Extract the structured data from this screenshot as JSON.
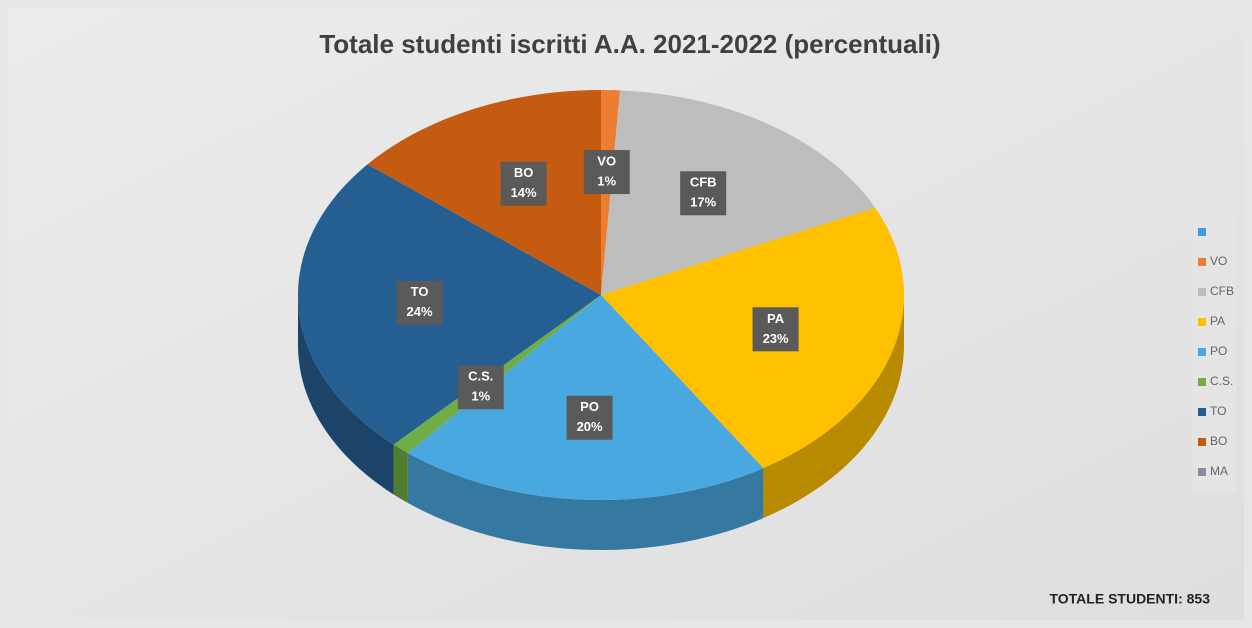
{
  "chart_data": {
    "type": "pie3d",
    "title": "Totale studenti iscritti A.A. 2021-2022 (percentuali)",
    "categories": [
      null,
      "VO",
      "CFB",
      "PA",
      "PO",
      "C.S.",
      "TO",
      "BO",
      "MA"
    ],
    "values": [
      null,
      1,
      17,
      23,
      20,
      1,
      24,
      14,
      null
    ],
    "value_labels": [
      null,
      "1%",
      "17%",
      "23%",
      "20%",
      "1%",
      "24%",
      "14%",
      null
    ],
    "colors": [
      "#3d9be0",
      "#ed7d31",
      "#bdbdbd",
      "#ffc000",
      "#4aa8e0",
      "#70ad47",
      "#255e91",
      "#c55a11",
      "#8a8a9c"
    ],
    "legend": "right",
    "annotation": "TOTALE STUDENTI: 853"
  }
}
